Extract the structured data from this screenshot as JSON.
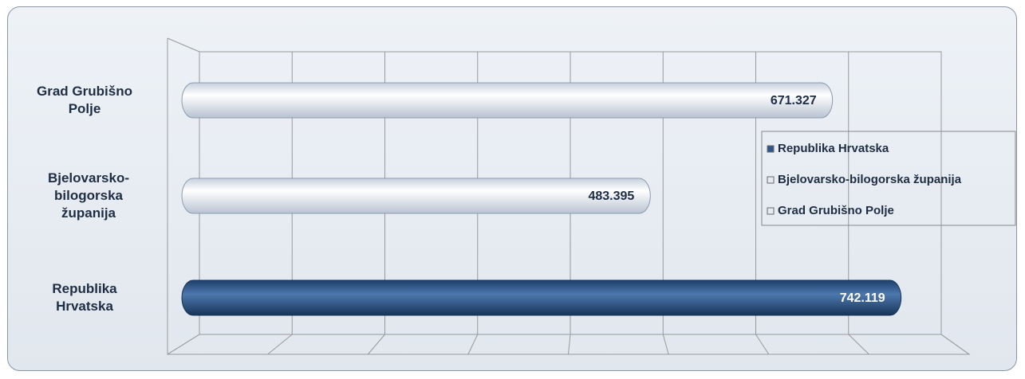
{
  "chart_data": {
    "type": "bar",
    "orientation": "horizontal",
    "categories": [
      "Grad Grubišno Polje",
      "Bjelovarsko-bilogorska županija",
      "Republika Hrvatska"
    ],
    "values": [
      671.327,
      483.395,
      742.119
    ],
    "colors": [
      "#e8ecf2",
      "#e8ecf2",
      "#2f5688"
    ],
    "xlim": [
      0,
      800
    ],
    "xticks": [
      0,
      100,
      200,
      300,
      400,
      500,
      600,
      700,
      800
    ],
    "grid": true,
    "legend": {
      "position": "right",
      "entries": [
        {
          "name": "Republika Hrvatska",
          "color": "#2f5688"
        },
        {
          "name": "Bjelovarsko-bilogorska županija",
          "color": "#e8ecf2"
        },
        {
          "name": "Grad Grubišno Polje",
          "color": "#e8ecf2"
        }
      ]
    }
  }
}
